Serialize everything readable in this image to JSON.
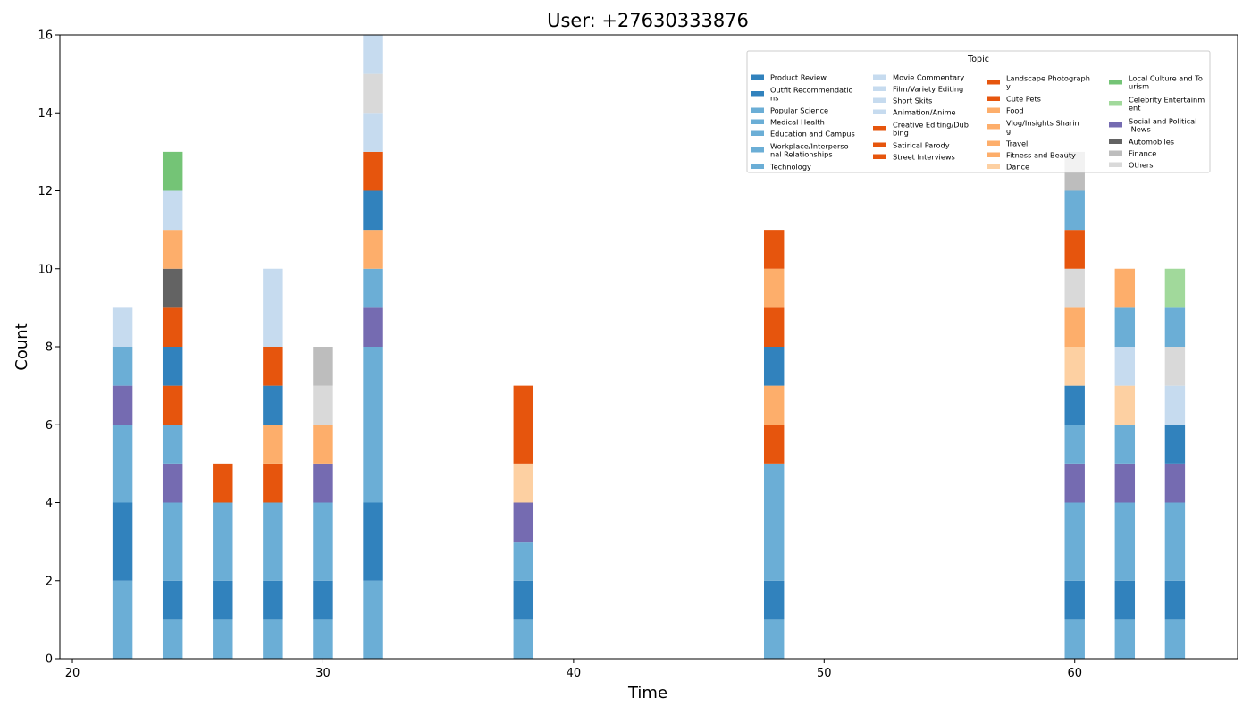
{
  "chart_data": {
    "type": "bar",
    "stacked": true,
    "title": "User: +27630333876",
    "xlabel": "Time",
    "ylabel": "Count",
    "xlim": [
      19.5,
      66.5
    ],
    "ylim": [
      0,
      16
    ],
    "xticks": [
      20,
      30,
      40,
      50,
      60
    ],
    "yticks": [
      0,
      2,
      4,
      6,
      8,
      10,
      12,
      14,
      16
    ],
    "bar_width": 0.8,
    "grid": false,
    "legend": {
      "title": "Topic",
      "placement": "top-right",
      "columns": 4,
      "entries": [
        {
          "label": "Product Review",
          "color": "#3182bd"
        },
        {
          "label": "Outfit Recommendatio\nns",
          "color": "#3182bd"
        },
        {
          "label": "Popular Science",
          "color": "#6baed6"
        },
        {
          "label": "Medical Health",
          "color": "#6baed6"
        },
        {
          "label": "Education and Campus",
          "color": "#6baed6"
        },
        {
          "label": "Workplace/Interperso\nnal Relationships",
          "color": "#6baed6"
        },
        {
          "label": "Technology",
          "color": "#6baed6"
        },
        {
          "label": "Movie Commentary",
          "color": "#c6dbef"
        },
        {
          "label": "Film/Variety Editing",
          "color": "#c6dbef"
        },
        {
          "label": "Short Skits",
          "color": "#c6dbef"
        },
        {
          "label": "Animation/Anime",
          "color": "#c6dbef"
        },
        {
          "label": "Creative Editing/Dub\nbing",
          "color": "#e6550d"
        },
        {
          "label": "Satirical Parody",
          "color": "#e6550d"
        },
        {
          "label": "Street Interviews",
          "color": "#e6550d"
        },
        {
          "label": "Landscape Photograph\ny",
          "color": "#e6550d"
        },
        {
          "label": "Cute Pets",
          "color": "#e6550d"
        },
        {
          "label": "Food",
          "color": "#fdae6b"
        },
        {
          "label": "Vlog/Insights Sharin\ng",
          "color": "#fdae6b"
        },
        {
          "label": "Travel",
          "color": "#fdae6b"
        },
        {
          "label": "Fitness and Beauty",
          "color": "#fdae6b"
        },
        {
          "label": "Dance",
          "color": "#fdd0a2"
        },
        {
          "label": "Local Culture and To\nurism",
          "color": "#74c476"
        },
        {
          "label": "Celebrity Entertainm\nent",
          "color": "#a1d99b"
        },
        {
          "label": "Social and Political\n News",
          "color": "#756bb1"
        },
        {
          "label": "Automobiles",
          "color": "#636363"
        },
        {
          "label": "Finance",
          "color": "#bdbdbd"
        },
        {
          "label": "Others",
          "color": "#d9d9d9"
        }
      ]
    },
    "bars": [
      {
        "x": 22,
        "segments": [
          {
            "value": 2,
            "color": "#6baed6"
          },
          {
            "value": 2,
            "color": "#3182bd"
          },
          {
            "value": 2,
            "color": "#6baed6"
          },
          {
            "value": 1,
            "color": "#756bb1"
          },
          {
            "value": 1,
            "color": "#6baed6"
          },
          {
            "value": 1,
            "color": "#c6dbef"
          }
        ]
      },
      {
        "x": 24,
        "segments": [
          {
            "value": 1,
            "color": "#6baed6"
          },
          {
            "value": 1,
            "color": "#3182bd"
          },
          {
            "value": 2,
            "color": "#6baed6"
          },
          {
            "value": 1,
            "color": "#756bb1"
          },
          {
            "value": 1,
            "color": "#6baed6"
          },
          {
            "value": 1,
            "color": "#e6550d"
          },
          {
            "value": 1,
            "color": "#3182bd"
          },
          {
            "value": 1,
            "color": "#e6550d"
          },
          {
            "value": 1,
            "color": "#636363"
          },
          {
            "value": 1,
            "color": "#fdae6b"
          },
          {
            "value": 1,
            "color": "#c6dbef"
          },
          {
            "value": 1,
            "color": "#74c476"
          }
        ]
      },
      {
        "x": 26,
        "segments": [
          {
            "value": 1,
            "color": "#6baed6"
          },
          {
            "value": 1,
            "color": "#3182bd"
          },
          {
            "value": 2,
            "color": "#6baed6"
          },
          {
            "value": 1,
            "color": "#e6550d"
          }
        ]
      },
      {
        "x": 28,
        "segments": [
          {
            "value": 1,
            "color": "#6baed6"
          },
          {
            "value": 1,
            "color": "#3182bd"
          },
          {
            "value": 2,
            "color": "#6baed6"
          },
          {
            "value": 1,
            "color": "#e6550d"
          },
          {
            "value": 1,
            "color": "#fdae6b"
          },
          {
            "value": 1,
            "color": "#3182bd"
          },
          {
            "value": 1,
            "color": "#e6550d"
          },
          {
            "value": 2,
            "color": "#c6dbef"
          }
        ]
      },
      {
        "x": 30,
        "segments": [
          {
            "value": 1,
            "color": "#6baed6"
          },
          {
            "value": 1,
            "color": "#3182bd"
          },
          {
            "value": 2,
            "color": "#6baed6"
          },
          {
            "value": 1,
            "color": "#756bb1"
          },
          {
            "value": 1,
            "color": "#fdae6b"
          },
          {
            "value": 1,
            "color": "#d9d9d9"
          },
          {
            "value": 1,
            "color": "#bdbdbd"
          }
        ]
      },
      {
        "x": 32,
        "segments": [
          {
            "value": 2,
            "color": "#6baed6"
          },
          {
            "value": 2,
            "color": "#3182bd"
          },
          {
            "value": 4,
            "color": "#6baed6"
          },
          {
            "value": 1,
            "color": "#756bb1"
          },
          {
            "value": 1,
            "color": "#6baed6"
          },
          {
            "value": 1,
            "color": "#fdae6b"
          },
          {
            "value": 1,
            "color": "#3182bd"
          },
          {
            "value": 1,
            "color": "#e6550d"
          },
          {
            "value": 1,
            "color": "#c6dbef"
          },
          {
            "value": 1,
            "color": "#d9d9d9"
          },
          {
            "value": 1,
            "color": "#c6dbef"
          }
        ]
      },
      {
        "x": 38,
        "segments": [
          {
            "value": 1,
            "color": "#6baed6"
          },
          {
            "value": 1,
            "color": "#3182bd"
          },
          {
            "value": 1,
            "color": "#6baed6"
          },
          {
            "value": 1,
            "color": "#756bb1"
          },
          {
            "value": 1,
            "color": "#fdd0a2"
          },
          {
            "value": 2,
            "color": "#e6550d"
          }
        ]
      },
      {
        "x": 48,
        "segments": [
          {
            "value": 1,
            "color": "#6baed6"
          },
          {
            "value": 1,
            "color": "#3182bd"
          },
          {
            "value": 3,
            "color": "#6baed6"
          },
          {
            "value": 1,
            "color": "#e6550d"
          },
          {
            "value": 1,
            "color": "#fdae6b"
          },
          {
            "value": 1,
            "color": "#3182bd"
          },
          {
            "value": 1,
            "color": "#e6550d"
          },
          {
            "value": 1,
            "color": "#fdae6b"
          },
          {
            "value": 1,
            "color": "#e6550d"
          }
        ]
      },
      {
        "x": 60,
        "segments": [
          {
            "value": 1,
            "color": "#6baed6"
          },
          {
            "value": 1,
            "color": "#3182bd"
          },
          {
            "value": 2,
            "color": "#6baed6"
          },
          {
            "value": 1,
            "color": "#756bb1"
          },
          {
            "value": 1,
            "color": "#6baed6"
          },
          {
            "value": 1,
            "color": "#3182bd"
          },
          {
            "value": 1,
            "color": "#fdd0a2"
          },
          {
            "value": 1,
            "color": "#fdae6b"
          },
          {
            "value": 1,
            "color": "#d9d9d9"
          },
          {
            "value": 1,
            "color": "#e6550d"
          },
          {
            "value": 1,
            "color": "#6baed6"
          },
          {
            "value": 1,
            "color": "#bdbdbd"
          }
        ]
      },
      {
        "x": 62,
        "segments": [
          {
            "value": 1,
            "color": "#6baed6"
          },
          {
            "value": 1,
            "color": "#3182bd"
          },
          {
            "value": 2,
            "color": "#6baed6"
          },
          {
            "value": 1,
            "color": "#756bb1"
          },
          {
            "value": 1,
            "color": "#6baed6"
          },
          {
            "value": 1,
            "color": "#fdd0a2"
          },
          {
            "value": 1,
            "color": "#c6dbef"
          },
          {
            "value": 1,
            "color": "#6baed6"
          },
          {
            "value": 1,
            "color": "#fdae6b"
          }
        ]
      },
      {
        "x": 64,
        "segments": [
          {
            "value": 1,
            "color": "#6baed6"
          },
          {
            "value": 1,
            "color": "#3182bd"
          },
          {
            "value": 2,
            "color": "#6baed6"
          },
          {
            "value": 1,
            "color": "#756bb1"
          },
          {
            "value": 1,
            "color": "#3182bd"
          },
          {
            "value": 1,
            "color": "#c6dbef"
          },
          {
            "value": 1,
            "color": "#d9d9d9"
          },
          {
            "value": 1,
            "color": "#6baed6"
          },
          {
            "value": 1,
            "color": "#a1d99b"
          }
        ]
      }
    ]
  }
}
